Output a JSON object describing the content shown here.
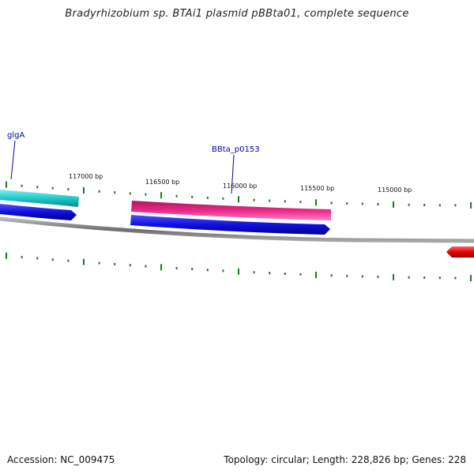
{
  "title": "Bradyrhizobium sp. BTAi1 plasmid pBBta01, complete sequence",
  "footer": {
    "accession": "Accession: NC_009475",
    "summary": "Topology: circular; Length: 228,826 bp; Genes: 228"
  },
  "scale_labels": [
    "117000 bp",
    "116500 bp",
    "116000 bp",
    "115500 bp",
    "115000 bp"
  ],
  "gene_labels": [
    {
      "name": "glgA"
    },
    {
      "name": "BBta_p0153"
    }
  ],
  "colors": {
    "tick": "#1f7a1f",
    "backbone": "#808080",
    "cyan_gene": "#20c8c8",
    "blue_gene": "#1010e0",
    "pink_gene": "#e8288a",
    "red_gene": "#e80000",
    "label": "#0000aa"
  }
}
